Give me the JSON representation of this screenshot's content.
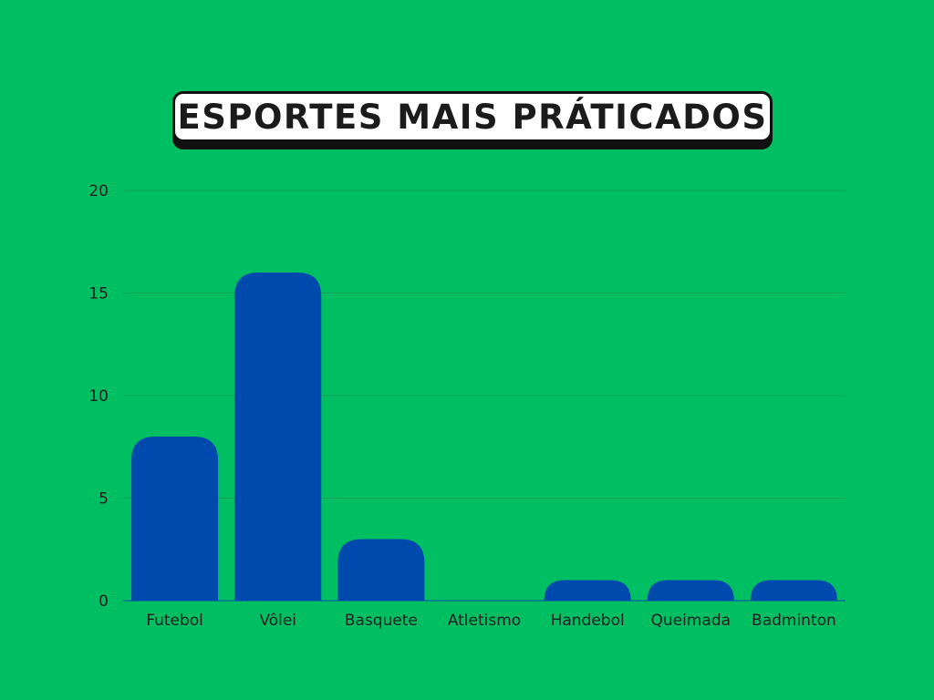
{
  "colors": {
    "background": "#00BF63",
    "bar": "#004AAD",
    "grid": "#0FA35A",
    "text": "#1E1E1E",
    "title_box": "#FFFFFF",
    "title_border": "#111111"
  },
  "chart_data": {
    "type": "bar",
    "title": "ESPORTES MAIS PRÁTICADOS",
    "xlabel": "",
    "ylabel": "",
    "categories": [
      "Futebol",
      "Vôlei",
      "Basquete",
      "Atletismo",
      "Handebol",
      "Queimada",
      "Badminton"
    ],
    "values": [
      8,
      16,
      3,
      0,
      1,
      1,
      1
    ],
    "ylim": [
      0,
      20
    ],
    "yticks": [
      "0",
      "5",
      "10",
      "15",
      "20"
    ],
    "grid": true,
    "legend": "none"
  }
}
